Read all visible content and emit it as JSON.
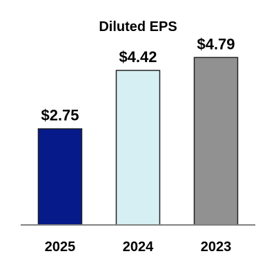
{
  "chart_data": {
    "type": "bar",
    "title": "Diluted EPS",
    "xlabel": "",
    "ylabel": "",
    "categories": [
      "2025",
      "2024",
      "2023"
    ],
    "values": [
      2.75,
      4.42,
      4.79
    ],
    "value_labels": [
      "$2.75",
      "$4.42",
      "$4.79"
    ],
    "bar_colors": [
      "#061a8a",
      "#d5eff3",
      "#919191"
    ],
    "ylim": [
      0,
      6
    ],
    "grid": false,
    "legend": "none"
  },
  "colors": {
    "bar_edge": "#222222",
    "axis_line": "#808080"
  }
}
